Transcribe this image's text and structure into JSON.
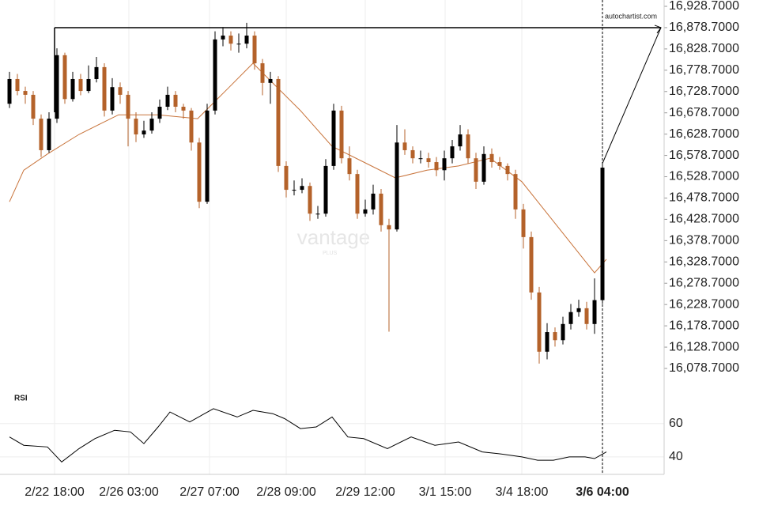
{
  "chart_data": {
    "type": "candlestick",
    "watermark": "vantage",
    "watermark_sub": "PLUS",
    "annotation": "autochartist.com",
    "resistance": 16878.7,
    "colors": {
      "up": "#000000",
      "down": "#b4622a",
      "ma": "#c8733a",
      "rsi": "#000000",
      "grid": "#eeeeee",
      "resistance": "#000000"
    },
    "xlim": [
      -1.2,
      82.8
    ],
    "xticks": [
      {
        "value": 5.7,
        "label": "2/22 18:00"
      },
      {
        "value": 15.1,
        "label": "2/26 03:00"
      },
      {
        "value": 25.3,
        "label": "2/27 07:00"
      },
      {
        "value": 35,
        "label": "2/28 09:00"
      },
      {
        "value": 45,
        "label": "2/29 12:00"
      },
      {
        "value": 55.1,
        "label": "3/1 15:00"
      },
      {
        "value": 64.8,
        "label": "3/4 18:00"
      },
      {
        "value": 75,
        "label": "3/6 04:00"
      }
    ],
    "ylim": [
      16078.7,
      16928.7
    ],
    "yticks": [
      {
        "value": 16928.7,
        "label": "16,928.7000"
      },
      {
        "value": 16878.7,
        "label": "16,878.7000"
      },
      {
        "value": 16828.7,
        "label": "16,828.7000"
      },
      {
        "value": 16778.7,
        "label": "16,778.7000"
      },
      {
        "value": 16728.7,
        "label": "16,728.7000"
      },
      {
        "value": 16678.7,
        "label": "16,678.7000"
      },
      {
        "value": 16628.7,
        "label": "16,628.7000"
      },
      {
        "value": 16578.7,
        "label": "16,578.7000"
      },
      {
        "value": 16528.7,
        "label": "16,528.7000"
      },
      {
        "value": 16478.7,
        "label": "16,478.7000"
      },
      {
        "value": 16428.7,
        "label": "16,428.7000"
      },
      {
        "value": 16378.7,
        "label": "16,378.7000"
      },
      {
        "value": 16328.7,
        "label": "16,328.7000"
      },
      {
        "value": 16278.7,
        "label": "16,278.7000"
      },
      {
        "value": 16228.7,
        "label": "16,228.7000"
      },
      {
        "value": 16178.7,
        "label": "16,178.7000"
      },
      {
        "value": 16128.7,
        "label": "16,128.7000"
      },
      {
        "value": 16078.7,
        "label": "16,078.7000"
      }
    ],
    "series": [
      {
        "name": "price",
        "values": [
          [
            16700,
            16775,
            16690,
            16758
          ],
          [
            16758,
            16770,
            16720,
            16730
          ],
          [
            16730,
            16740,
            16700,
            16721
          ],
          [
            16721,
            16730,
            16650,
            16665
          ],
          [
            16665,
            16675,
            16575,
            16591
          ],
          [
            16591,
            16680,
            16585,
            16665
          ],
          [
            16665,
            16830,
            16655,
            16814
          ],
          [
            16814,
            16820,
            16700,
            16711
          ],
          [
            16711,
            16775,
            16705,
            16758
          ],
          [
            16758,
            16770,
            16720,
            16730
          ],
          [
            16730,
            16790,
            16725,
            16758
          ],
          [
            16758,
            16810,
            16750,
            16786
          ],
          [
            16786,
            16795,
            16670,
            16684
          ],
          [
            16684,
            16760,
            16675,
            16739
          ],
          [
            16739,
            16750,
            16700,
            16721
          ],
          [
            16721,
            16730,
            16600,
            16665
          ],
          [
            16665,
            16680,
            16610,
            16628
          ],
          [
            16628,
            16660,
            16620,
            16637
          ],
          [
            16637,
            16680,
            16630,
            16665
          ],
          [
            16665,
            16710,
            16655,
            16693
          ],
          [
            16693,
            16740,
            16685,
            16721
          ],
          [
            16721,
            16730,
            16680,
            16693
          ],
          [
            16693,
            16700,
            16665,
            16684
          ],
          [
            16684,
            16690,
            16590,
            16609
          ],
          [
            16609,
            16620,
            16455,
            16470
          ],
          [
            16470,
            16700,
            16465,
            16684
          ],
          [
            16684,
            16870,
            16675,
            16851
          ],
          [
            16851,
            16880,
            16835,
            16860
          ],
          [
            16860,
            16870,
            16825,
            16841
          ],
          [
            16841,
            16865,
            16820,
            16841
          ],
          [
            16841,
            16890,
            16830,
            16860
          ],
          [
            16860,
            16870,
            16780,
            16795
          ],
          [
            16795,
            16805,
            16720,
            16749
          ],
          [
            16749,
            16775,
            16700,
            16758
          ],
          [
            16758,
            16765,
            16540,
            16554
          ],
          [
            16554,
            16565,
            16480,
            16498
          ],
          [
            16498,
            16520,
            16485,
            16498
          ],
          [
            16498,
            16525,
            16490,
            16507
          ],
          [
            16507,
            16515,
            16425,
            16442
          ],
          [
            16442,
            16460,
            16430,
            16442
          ],
          [
            16442,
            16570,
            16435,
            16554
          ],
          [
            16554,
            16700,
            16545,
            16684
          ],
          [
            16684,
            16695,
            16560,
            16572
          ],
          [
            16572,
            16600,
            16520,
            16535
          ],
          [
            16535,
            16545,
            16430,
            16442
          ],
          [
            16442,
            16475,
            16435,
            16452
          ],
          [
            16452,
            16510,
            16440,
            16489
          ],
          [
            16489,
            16500,
            16400,
            16415
          ],
          [
            16415,
            16430,
            16165,
            16405
          ],
          [
            16405,
            16650,
            16400,
            16609
          ],
          [
            16609,
            16640,
            16580,
            16591
          ],
          [
            16591,
            16600,
            16560,
            16572
          ],
          [
            16572,
            16590,
            16560,
            16572
          ],
          [
            16572,
            16585,
            16550,
            16563
          ],
          [
            16563,
            16575,
            16530,
            16544
          ],
          [
            16544,
            16590,
            16520,
            16572
          ],
          [
            16572,
            16615,
            16560,
            16600
          ],
          [
            16600,
            16650,
            16590,
            16628
          ],
          [
            16628,
            16640,
            16560,
            16572
          ],
          [
            16572,
            16585,
            16500,
            16517
          ],
          [
            16517,
            16600,
            16510,
            16582
          ],
          [
            16582,
            16595,
            16550,
            16563
          ],
          [
            16563,
            16575,
            16545,
            16554
          ],
          [
            16554,
            16560,
            16520,
            16535
          ],
          [
            16535,
            16545,
            16430,
            16452
          ],
          [
            16452,
            16465,
            16360,
            16387
          ],
          [
            16387,
            16400,
            16240,
            16257
          ],
          [
            16257,
            16270,
            16090,
            16118
          ],
          [
            16118,
            16185,
            16100,
            16164
          ],
          [
            16164,
            16175,
            16130,
            16145
          ],
          [
            16145,
            16200,
            16135,
            16183
          ],
          [
            16183,
            16230,
            16170,
            16211
          ],
          [
            16211,
            16240,
            16200,
            16220
          ],
          [
            16220,
            16235,
            16170,
            16183
          ],
          [
            16183,
            16290,
            16160,
            16239
          ],
          [
            16239,
            16560,
            16230,
            16550
          ]
        ]
      }
    ],
    "ma": {
      "x": [
        0,
        1.8,
        4.8,
        8.8,
        13.8,
        18.8,
        23.8,
        27.8,
        30.8,
        32.8,
        36.8,
        40.8,
        44.8,
        48.8,
        52.8,
        56.8,
        60.8,
        64.8,
        68.8,
        72.8,
        74,
        75.5
      ],
      "values": [
        16470,
        16544,
        16582,
        16628,
        16674,
        16674,
        16665,
        16739,
        16795,
        16758,
        16684,
        16600,
        16563,
        16526,
        16544,
        16554,
        16572,
        16517,
        16424,
        16331,
        16303,
        16335
      ]
    },
    "rsi": {
      "title": "RSI",
      "ylim": [
        30,
        77
      ],
      "yticks": [
        60,
        40
      ],
      "x": [
        0,
        1.8,
        4.8,
        6.6,
        8.8,
        10.8,
        13.3,
        15.3,
        17,
        18.8,
        20.3,
        22.8,
        25.8,
        28.8,
        30.8,
        33.3,
        34.8,
        36.8,
        38.8,
        40.8,
        42.8,
        44.8,
        47.8,
        50.8,
        53.8,
        56.8,
        59.8,
        61.8,
        64.8,
        66.8,
        68.8,
        70.8,
        72.8,
        74,
        75.5
      ],
      "values": [
        52,
        47,
        46,
        37,
        45,
        51,
        56,
        55,
        48,
        58,
        67,
        61,
        69,
        64,
        68,
        66,
        63,
        57,
        58,
        64,
        52,
        51,
        45,
        52,
        47,
        49,
        43,
        42,
        40,
        38,
        38,
        40,
        40,
        39,
        43
      ]
    }
  }
}
